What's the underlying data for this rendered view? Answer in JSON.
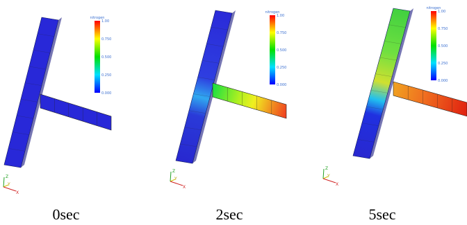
{
  "panels": [
    {
      "colorbar": {
        "title": "nitrogen",
        "ticks": [
          "1.00",
          "0.750",
          "0.500",
          "0.250",
          "0.000"
        ]
      },
      "axes": {
        "z": "Z",
        "y": "Y",
        "x": "X"
      },
      "caption": "0sec"
    },
    {
      "colorbar": {
        "title": "nitrogen",
        "ticks": [
          "1.00",
          "0.750",
          "0.500",
          "0.250",
          "0.000"
        ]
      },
      "axes": {
        "z": "Z",
        "y": "Y",
        "x": "X"
      },
      "caption": "2sec"
    },
    {
      "colorbar": {
        "title": "nitrogen",
        "ticks": [
          "1.00",
          "0.750",
          "0.500",
          "0.250",
          "0.000"
        ]
      },
      "axes": {
        "z": "Z",
        "y": "Y",
        "x": "X"
      },
      "caption": "5sec"
    }
  ]
}
